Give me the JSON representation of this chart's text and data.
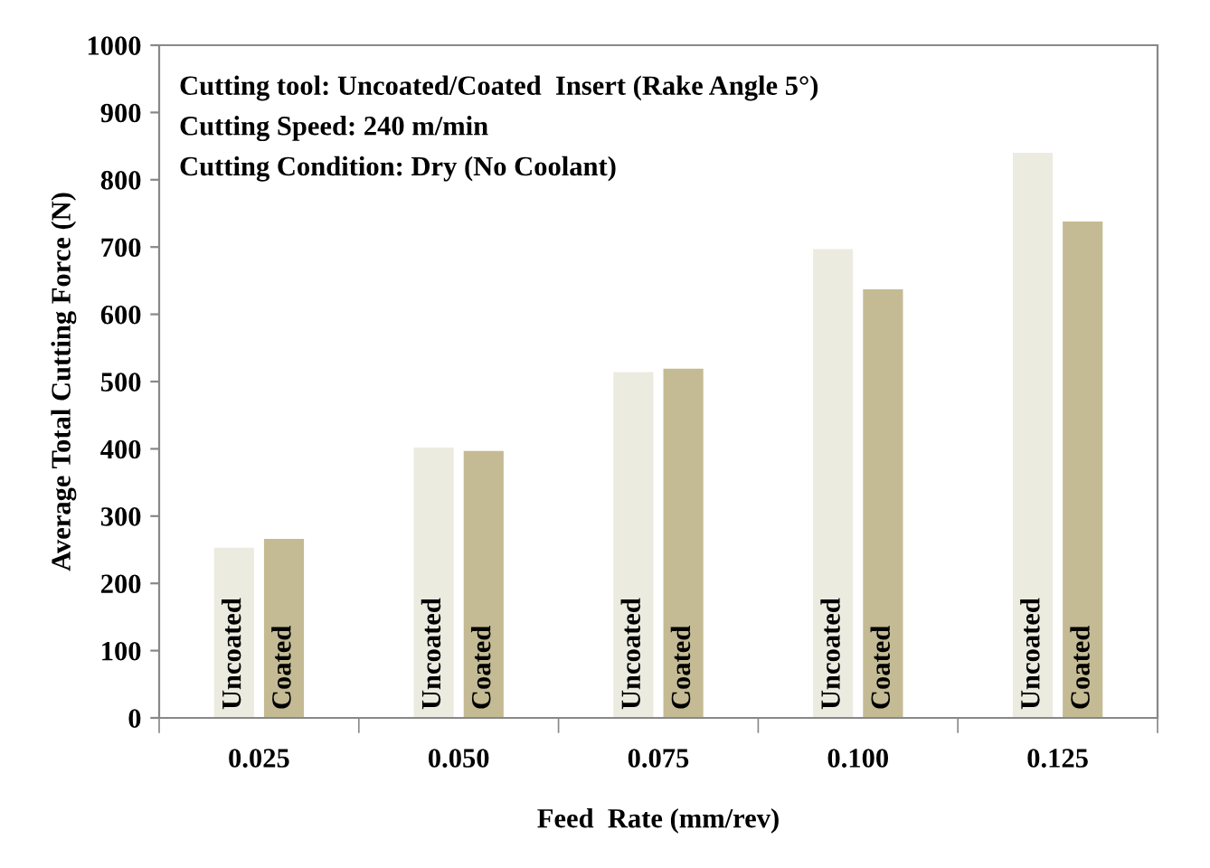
{
  "chart_data": {
    "type": "bar",
    "xlabel": "Feed  Rate (mm/rev)",
    "ylabel": "Average Total Cutting Force (N)",
    "categories": [
      "0.025",
      "0.050",
      "0.075",
      "0.100",
      "0.125"
    ],
    "series": [
      {
        "name": "Uncoated",
        "color": "#ecebe0",
        "values": [
          253,
          402,
          514,
          697,
          840
        ]
      },
      {
        "name": "Coated",
        "color": "#c4bb94",
        "values": [
          266,
          397,
          519,
          637,
          738
        ]
      }
    ],
    "ylim": [
      0,
      1000
    ],
    "yticks": [
      0,
      100,
      200,
      300,
      400,
      500,
      600,
      700,
      800,
      900,
      1000
    ],
    "grid": false,
    "legend": false,
    "annotations": [
      "Cutting tool: Uncoated/Coated  Insert (Rake Angle 5°)",
      "Cutting Speed: 240 m/min",
      "Cutting Condition: Dry (No Coolant)"
    ]
  }
}
